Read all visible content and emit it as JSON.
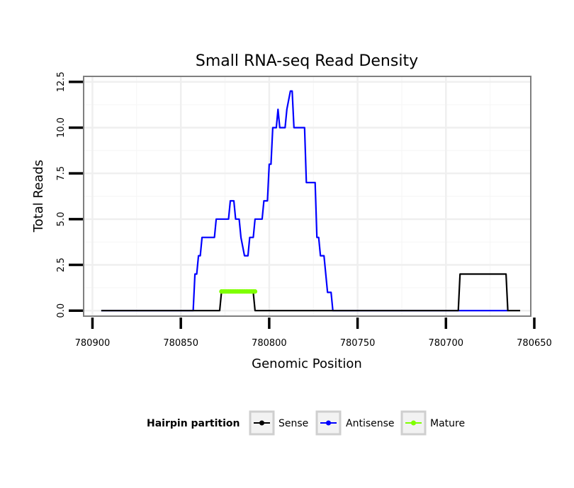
{
  "chart_data": {
    "type": "line",
    "title": "Small RNA-seq Read Density",
    "xlabel": "Genomic Position",
    "ylabel": "Total Reads",
    "xlim": [
      780905,
      780652
    ],
    "ylim": [
      -0.3,
      12.8
    ],
    "x_reversed": true,
    "x_ticks": [
      780900,
      780850,
      780800,
      780750,
      780700,
      780650
    ],
    "x_tick_labels": [
      "780900",
      "780850",
      "780800",
      "780750",
      "780700",
      "780650"
    ],
    "y_ticks": [
      0,
      2.5,
      5,
      7.5,
      10,
      12.5
    ],
    "y_tick_labels": [
      "0.0",
      "2.5",
      "5.0",
      "7.5",
      "10.0",
      "12.5"
    ],
    "grid": true,
    "legend": {
      "title": "Hairpin partition",
      "position": "bottom",
      "entries": [
        {
          "name": "Sense",
          "color": "#000000"
        },
        {
          "name": "Antisense",
          "color": "#0000ff"
        },
        {
          "name": "Mature",
          "color": "#7fff00"
        }
      ]
    },
    "series": [
      {
        "name": "Antisense",
        "color": "#0000ff",
        "points": [
          [
            780895,
            0
          ],
          [
            780843,
            0
          ],
          [
            780842,
            2
          ],
          [
            780841,
            2
          ],
          [
            780840,
            3
          ],
          [
            780839,
            3
          ],
          [
            780838,
            4
          ],
          [
            780831,
            4
          ],
          [
            780830,
            5
          ],
          [
            780823,
            5
          ],
          [
            780822,
            6
          ],
          [
            780820,
            6
          ],
          [
            780819,
            5
          ],
          [
            780817,
            5
          ],
          [
            780816,
            4
          ],
          [
            780814,
            3
          ],
          [
            780812,
            3
          ],
          [
            780811,
            4
          ],
          [
            780809,
            4
          ],
          [
            780808,
            5
          ],
          [
            780804,
            5
          ],
          [
            780803,
            6
          ],
          [
            780801,
            6
          ],
          [
            780800,
            8
          ],
          [
            780799,
            8
          ],
          [
            780798,
            10
          ],
          [
            780796,
            10
          ],
          [
            780795,
            11
          ],
          [
            780794,
            10
          ],
          [
            780791,
            10
          ],
          [
            780790,
            11
          ],
          [
            780788,
            12
          ],
          [
            780787,
            12
          ],
          [
            780786,
            10
          ],
          [
            780780,
            10
          ],
          [
            780779,
            7
          ],
          [
            780774,
            7
          ],
          [
            780773,
            4
          ],
          [
            780772,
            4
          ],
          [
            780771,
            3
          ],
          [
            780769,
            3
          ],
          [
            780768,
            2
          ],
          [
            780767,
            1
          ],
          [
            780765,
            1
          ],
          [
            780764,
            0
          ],
          [
            780665,
            0
          ]
        ]
      },
      {
        "name": "Sense",
        "color": "#000000",
        "points": [
          [
            780895,
            0
          ],
          [
            780828,
            0
          ],
          [
            780827,
            1
          ],
          [
            780809,
            1
          ],
          [
            780808,
            0
          ],
          [
            780693,
            0
          ],
          [
            780692,
            2
          ],
          [
            780666,
            2
          ],
          [
            780665,
            0
          ],
          [
            780658,
            0
          ]
        ]
      },
      {
        "name": "Mature",
        "color": "#7fff00",
        "points": [
          [
            780827,
            1.05
          ],
          [
            780826,
            1.05
          ],
          [
            780825,
            1.05
          ],
          [
            780824,
            1.05
          ],
          [
            780823,
            1.05
          ],
          [
            780822,
            1.05
          ],
          [
            780821,
            1.05
          ],
          [
            780820,
            1.05
          ],
          [
            780819,
            1.05
          ],
          [
            780818,
            1.05
          ],
          [
            780817,
            1.05
          ],
          [
            780816,
            1.05
          ],
          [
            780815,
            1.05
          ],
          [
            780814,
            1.05
          ],
          [
            780813,
            1.05
          ],
          [
            780812,
            1.05
          ],
          [
            780811,
            1.05
          ],
          [
            780810,
            1.05
          ],
          [
            780809,
            1.05
          ],
          [
            780808,
            1.05
          ]
        ]
      }
    ]
  }
}
